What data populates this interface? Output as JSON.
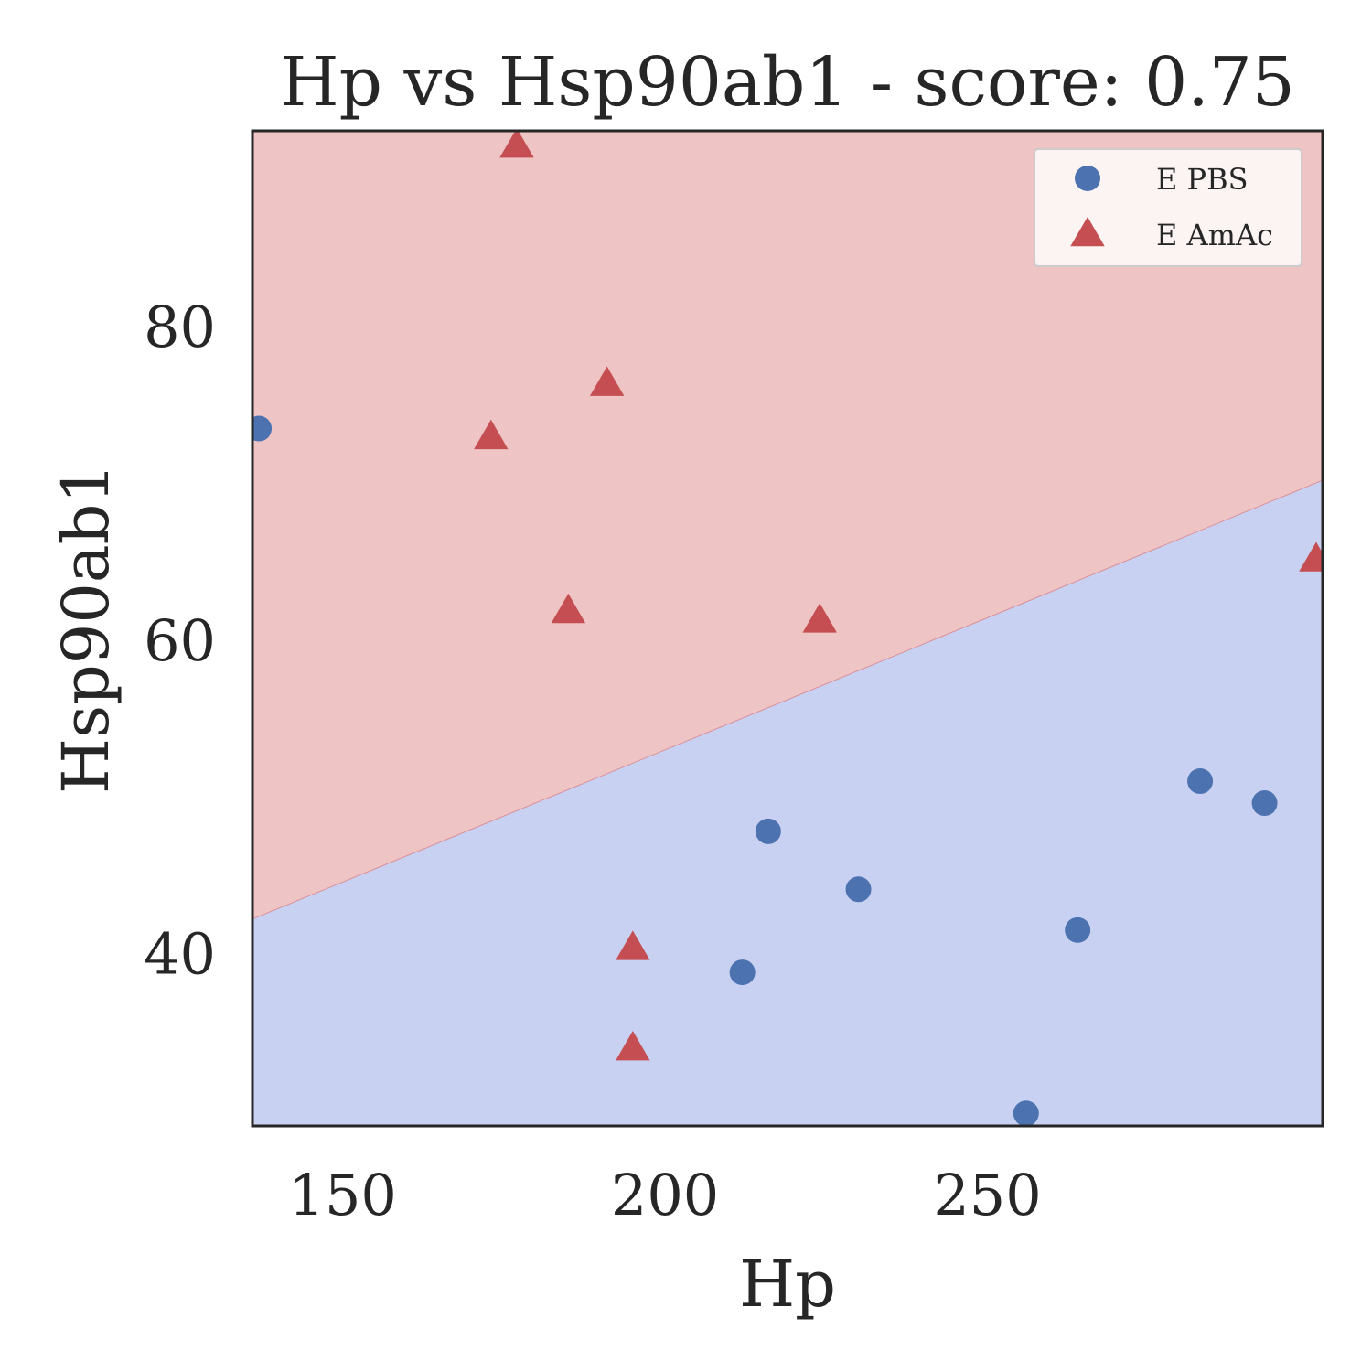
{
  "chart_data": {
    "type": "scatter",
    "title": "Hp vs Hsp90ab1 - score: 0.75",
    "xlabel": "Hp",
    "ylabel": "Hsp90ab1",
    "xlim": [
      136,
      302
    ],
    "ylim": [
      29,
      92.5
    ],
    "xticks": [
      150,
      200,
      250
    ],
    "yticks": [
      40,
      60,
      80
    ],
    "grid": false,
    "legend_position": "top-right",
    "decision_boundary": {
      "x": [
        136,
        302
      ],
      "y": [
        42.2,
        70.2
      ],
      "above_region": "E AmAc",
      "below_region": "E PBS"
    },
    "colors": {
      "above_fill": "#eec4c4",
      "below_fill": "#c9d1f2",
      "boundary": "#d9909a",
      "axes": "#262626"
    },
    "series": [
      {
        "name": "E PBS",
        "marker": "circle",
        "color": "#4c72b0",
        "points": [
          [
            137,
            73.5
          ],
          [
            216,
            47.8
          ],
          [
            212,
            38.8
          ],
          [
            230,
            44.1
          ],
          [
            256,
            29.8
          ],
          [
            264,
            41.5
          ],
          [
            283,
            51.0
          ],
          [
            293,
            49.6
          ]
        ]
      },
      {
        "name": "E AmAc",
        "marker": "triangle",
        "color": "#c44e52",
        "points": [
          [
            177,
            91.5
          ],
          [
            191,
            76.3
          ],
          [
            173,
            72.9
          ],
          [
            185,
            61.8
          ],
          [
            224,
            61.2
          ],
          [
            195,
            40.3
          ],
          [
            195,
            33.9
          ],
          [
            301,
            65.1
          ]
        ]
      }
    ]
  }
}
